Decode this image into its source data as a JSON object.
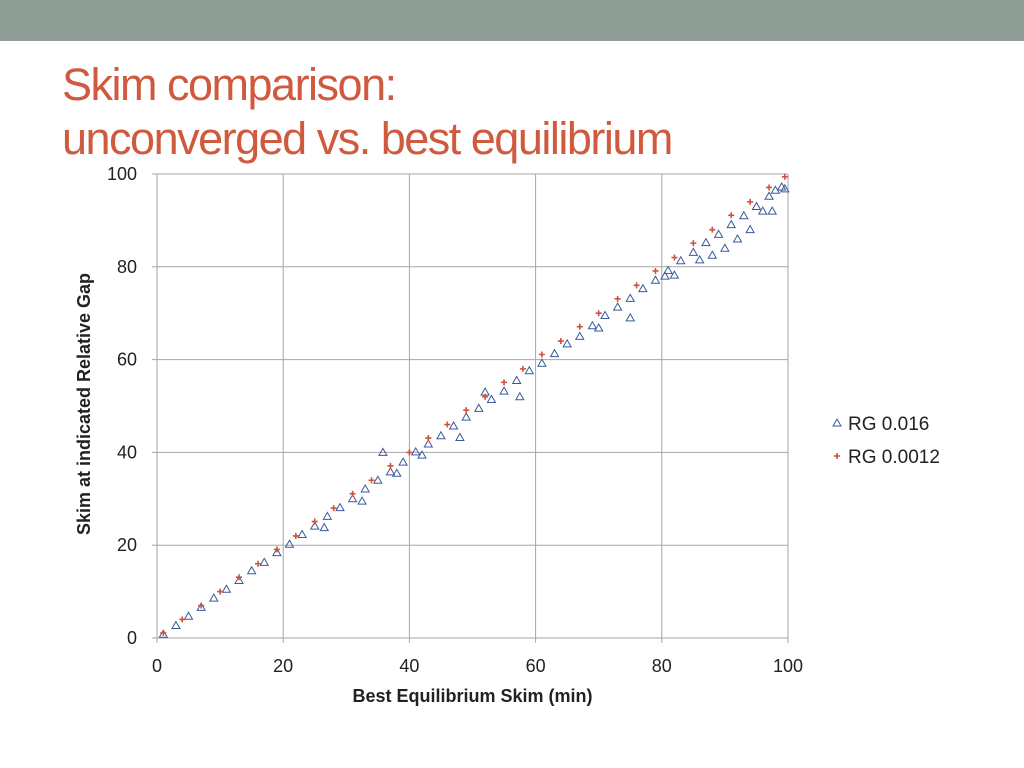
{
  "slide": {
    "title_line1": "Skim comparison:",
    "title_line2": "unconverged vs. best equilibrium"
  },
  "colors": {
    "top_bar": "#8f9f97",
    "title": "#cf5a3e",
    "series_triangle": "#3a5a9c",
    "series_plus": "#d0523a",
    "gridline": "#a6a6a6"
  },
  "chart_data": {
    "type": "scatter",
    "title": "",
    "xlabel": "Best Equilibrium Skim (min)",
    "ylabel": "Skim at indicated Relative Gap",
    "xlim": [
      0,
      100
    ],
    "ylim": [
      0,
      100
    ],
    "xticks": [
      "0",
      "20",
      "40",
      "60",
      "80",
      "100"
    ],
    "yticks": [
      "0",
      "20",
      "40",
      "60",
      "80",
      "100"
    ],
    "grid": true,
    "legend_position": "right",
    "series": [
      {
        "name": "RG 0.016",
        "marker": "triangle",
        "points": [
          [
            1,
            0.8
          ],
          [
            3,
            2.7
          ],
          [
            5,
            4.7
          ],
          [
            7,
            6.6
          ],
          [
            9,
            8.6
          ],
          [
            11,
            10.5
          ],
          [
            13,
            12.4
          ],
          [
            15,
            14.5
          ],
          [
            17,
            16.3
          ],
          [
            19,
            18.4
          ],
          [
            21,
            20.2
          ],
          [
            23,
            22.3
          ],
          [
            25,
            24.1
          ],
          [
            26.5,
            23.8
          ],
          [
            27,
            26.2
          ],
          [
            29,
            28.1
          ],
          [
            31,
            30.0
          ],
          [
            32.5,
            29.5
          ],
          [
            33,
            32.1
          ],
          [
            35,
            34.0
          ],
          [
            35.8,
            40.0
          ],
          [
            37,
            35.8
          ],
          [
            38,
            35.5
          ],
          [
            39,
            37.9
          ],
          [
            41,
            40.1
          ],
          [
            42,
            39.4
          ],
          [
            43,
            41.8
          ],
          [
            45,
            43.6
          ],
          [
            47,
            45.7
          ],
          [
            48,
            43.2
          ],
          [
            49,
            47.6
          ],
          [
            51,
            49.5
          ],
          [
            52,
            53.0
          ],
          [
            53,
            51.4
          ],
          [
            55,
            53.2
          ],
          [
            57,
            55.5
          ],
          [
            57.5,
            52.0
          ],
          [
            59,
            57.6
          ],
          [
            61,
            59.2
          ],
          [
            63,
            61.3
          ],
          [
            65,
            63.4
          ],
          [
            67,
            65.0
          ],
          [
            69,
            67.3
          ],
          [
            70,
            66.8
          ],
          [
            71,
            69.5
          ],
          [
            75,
            69.0
          ],
          [
            73,
            71.3
          ],
          [
            75,
            73.2
          ],
          [
            77,
            75.3
          ],
          [
            79,
            77.1
          ],
          [
            80.5,
            78.0
          ],
          [
            81,
            79.2
          ],
          [
            82,
            78.2
          ],
          [
            83,
            81.3
          ],
          [
            85,
            83.1
          ],
          [
            86,
            81.5
          ],
          [
            87,
            85.2
          ],
          [
            88,
            82.5
          ],
          [
            89,
            87.0
          ],
          [
            90,
            84.0
          ],
          [
            91,
            89.1
          ],
          [
            92,
            86.0
          ],
          [
            93,
            91.0
          ],
          [
            94,
            88.0
          ],
          [
            95,
            93.0
          ],
          [
            96,
            92.0
          ],
          [
            97,
            95.2
          ],
          [
            97.5,
            92.0
          ],
          [
            98,
            96.5
          ],
          [
            99,
            97.2
          ],
          [
            99.5,
            96.8
          ]
        ]
      },
      {
        "name": "RG 0.0012",
        "marker": "plus",
        "points": [
          [
            1,
            1.1
          ],
          [
            4,
            4.0
          ],
          [
            7,
            7.0
          ],
          [
            10,
            10.0
          ],
          [
            13,
            13.1
          ],
          [
            16,
            16.0
          ],
          [
            19,
            19.1
          ],
          [
            22,
            22.0
          ],
          [
            25,
            25.1
          ],
          [
            28,
            28.0
          ],
          [
            31,
            31.1
          ],
          [
            34,
            34.0
          ],
          [
            37,
            37.1
          ],
          [
            40,
            40.0
          ],
          [
            43,
            43.1
          ],
          [
            46,
            46.0
          ],
          [
            49,
            49.1
          ],
          [
            52,
            52.0
          ],
          [
            55,
            55.1
          ],
          [
            58,
            58.0
          ],
          [
            61,
            61.1
          ],
          [
            64,
            64.0
          ],
          [
            67,
            67.1
          ],
          [
            70,
            70.0
          ],
          [
            73,
            73.1
          ],
          [
            76,
            76.0
          ],
          [
            79,
            79.1
          ],
          [
            82,
            82.0
          ],
          [
            85,
            85.1
          ],
          [
            88,
            88.0
          ],
          [
            91,
            91.1
          ],
          [
            94,
            94.0
          ],
          [
            97,
            97.1
          ],
          [
            99.5,
            99.4
          ]
        ]
      }
    ]
  }
}
